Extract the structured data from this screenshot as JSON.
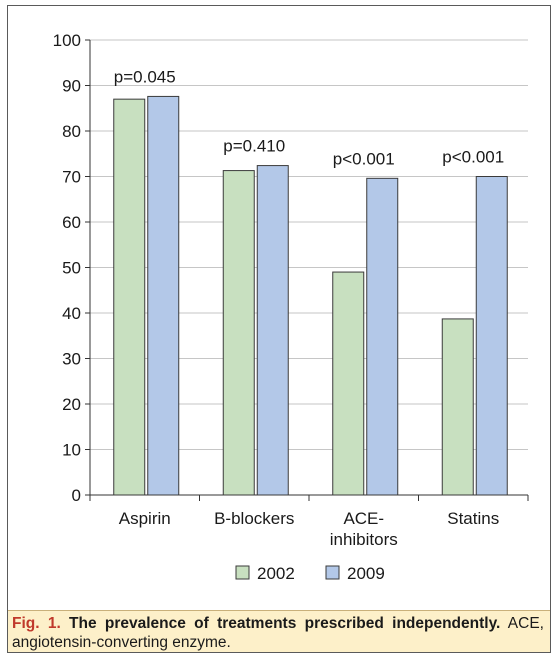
{
  "chart_data": {
    "type": "bar",
    "categories": [
      [
        "Aspirin"
      ],
      [
        "B-blockers"
      ],
      [
        "ACE-",
        "inhibitors"
      ],
      [
        "Statins"
      ]
    ],
    "series": [
      {
        "name": "2002",
        "color": "#c8e0c0",
        "values": [
          87.0,
          71.3,
          49.0,
          38.7
        ]
      },
      {
        "name": "2009",
        "color": "#b3c8e8",
        "values": [
          87.6,
          72.4,
          69.6,
          70.0
        ]
      }
    ],
    "annotations": [
      "p=0.045",
      "p=0.410",
      "p<0.001",
      "p<0.001"
    ],
    "ylim": [
      0,
      100
    ],
    "yticks": [
      0,
      10,
      20,
      30,
      40,
      50,
      60,
      70,
      80,
      90,
      100
    ],
    "gridlines": true,
    "legend_position": "bottom"
  },
  "caption": {
    "label": "Fig. 1.",
    "title": "The prevalence of treatments prescribed independently.",
    "text": "ACE, angiotensin-converting enzyme."
  }
}
